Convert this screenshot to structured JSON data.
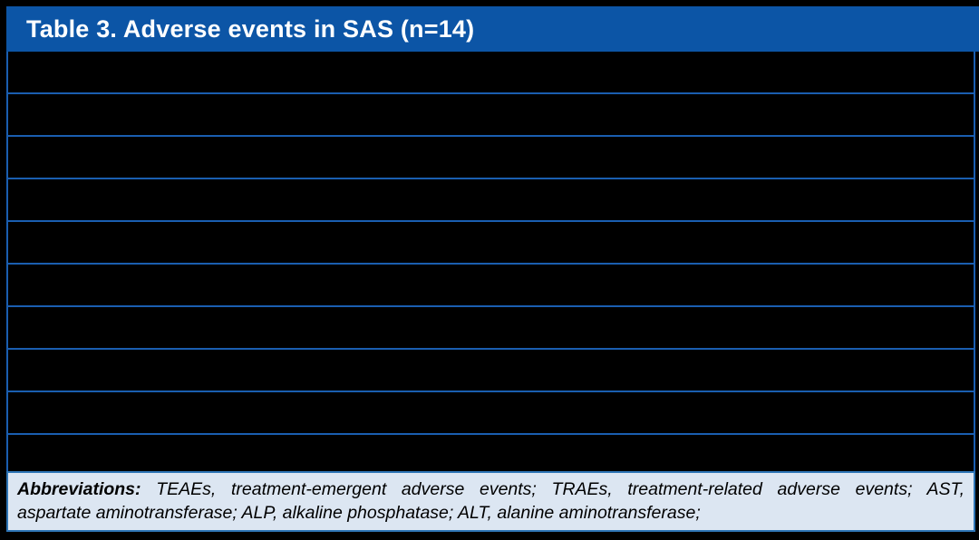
{
  "page": {
    "background": "#000000"
  },
  "header": {
    "title": "Table 3. Adverse events in SAS (n=14)",
    "bg": "#0C55A6",
    "text_color": "#FFFFFF"
  },
  "table": {
    "row_count": 10,
    "row_bg": "#000000",
    "line_color": "#1A5EB0",
    "note": "rows rendered with no visible text (black cells)"
  },
  "footer": {
    "label": "Abbreviations:",
    "line1_rest": "TEAEs, treatment-emergent adverse events; TRAEs, treatment-related adverse events; AST,",
    "line2": "aspartate aminotransferase; ALP, alkaline phosphatase; ALT, alanine aminotransferase;",
    "full_text": "Abbreviations: TEAEs, treatment-emergent adverse events; TRAEs, treatment-related adverse events; AST, aspartate aminotransferase; ALP, alkaline phosphatase; ALT, alanine aminotransferase;",
    "bg": "#DCE6F2",
    "border_color": "#2E75B6",
    "text_color": "#000000"
  }
}
